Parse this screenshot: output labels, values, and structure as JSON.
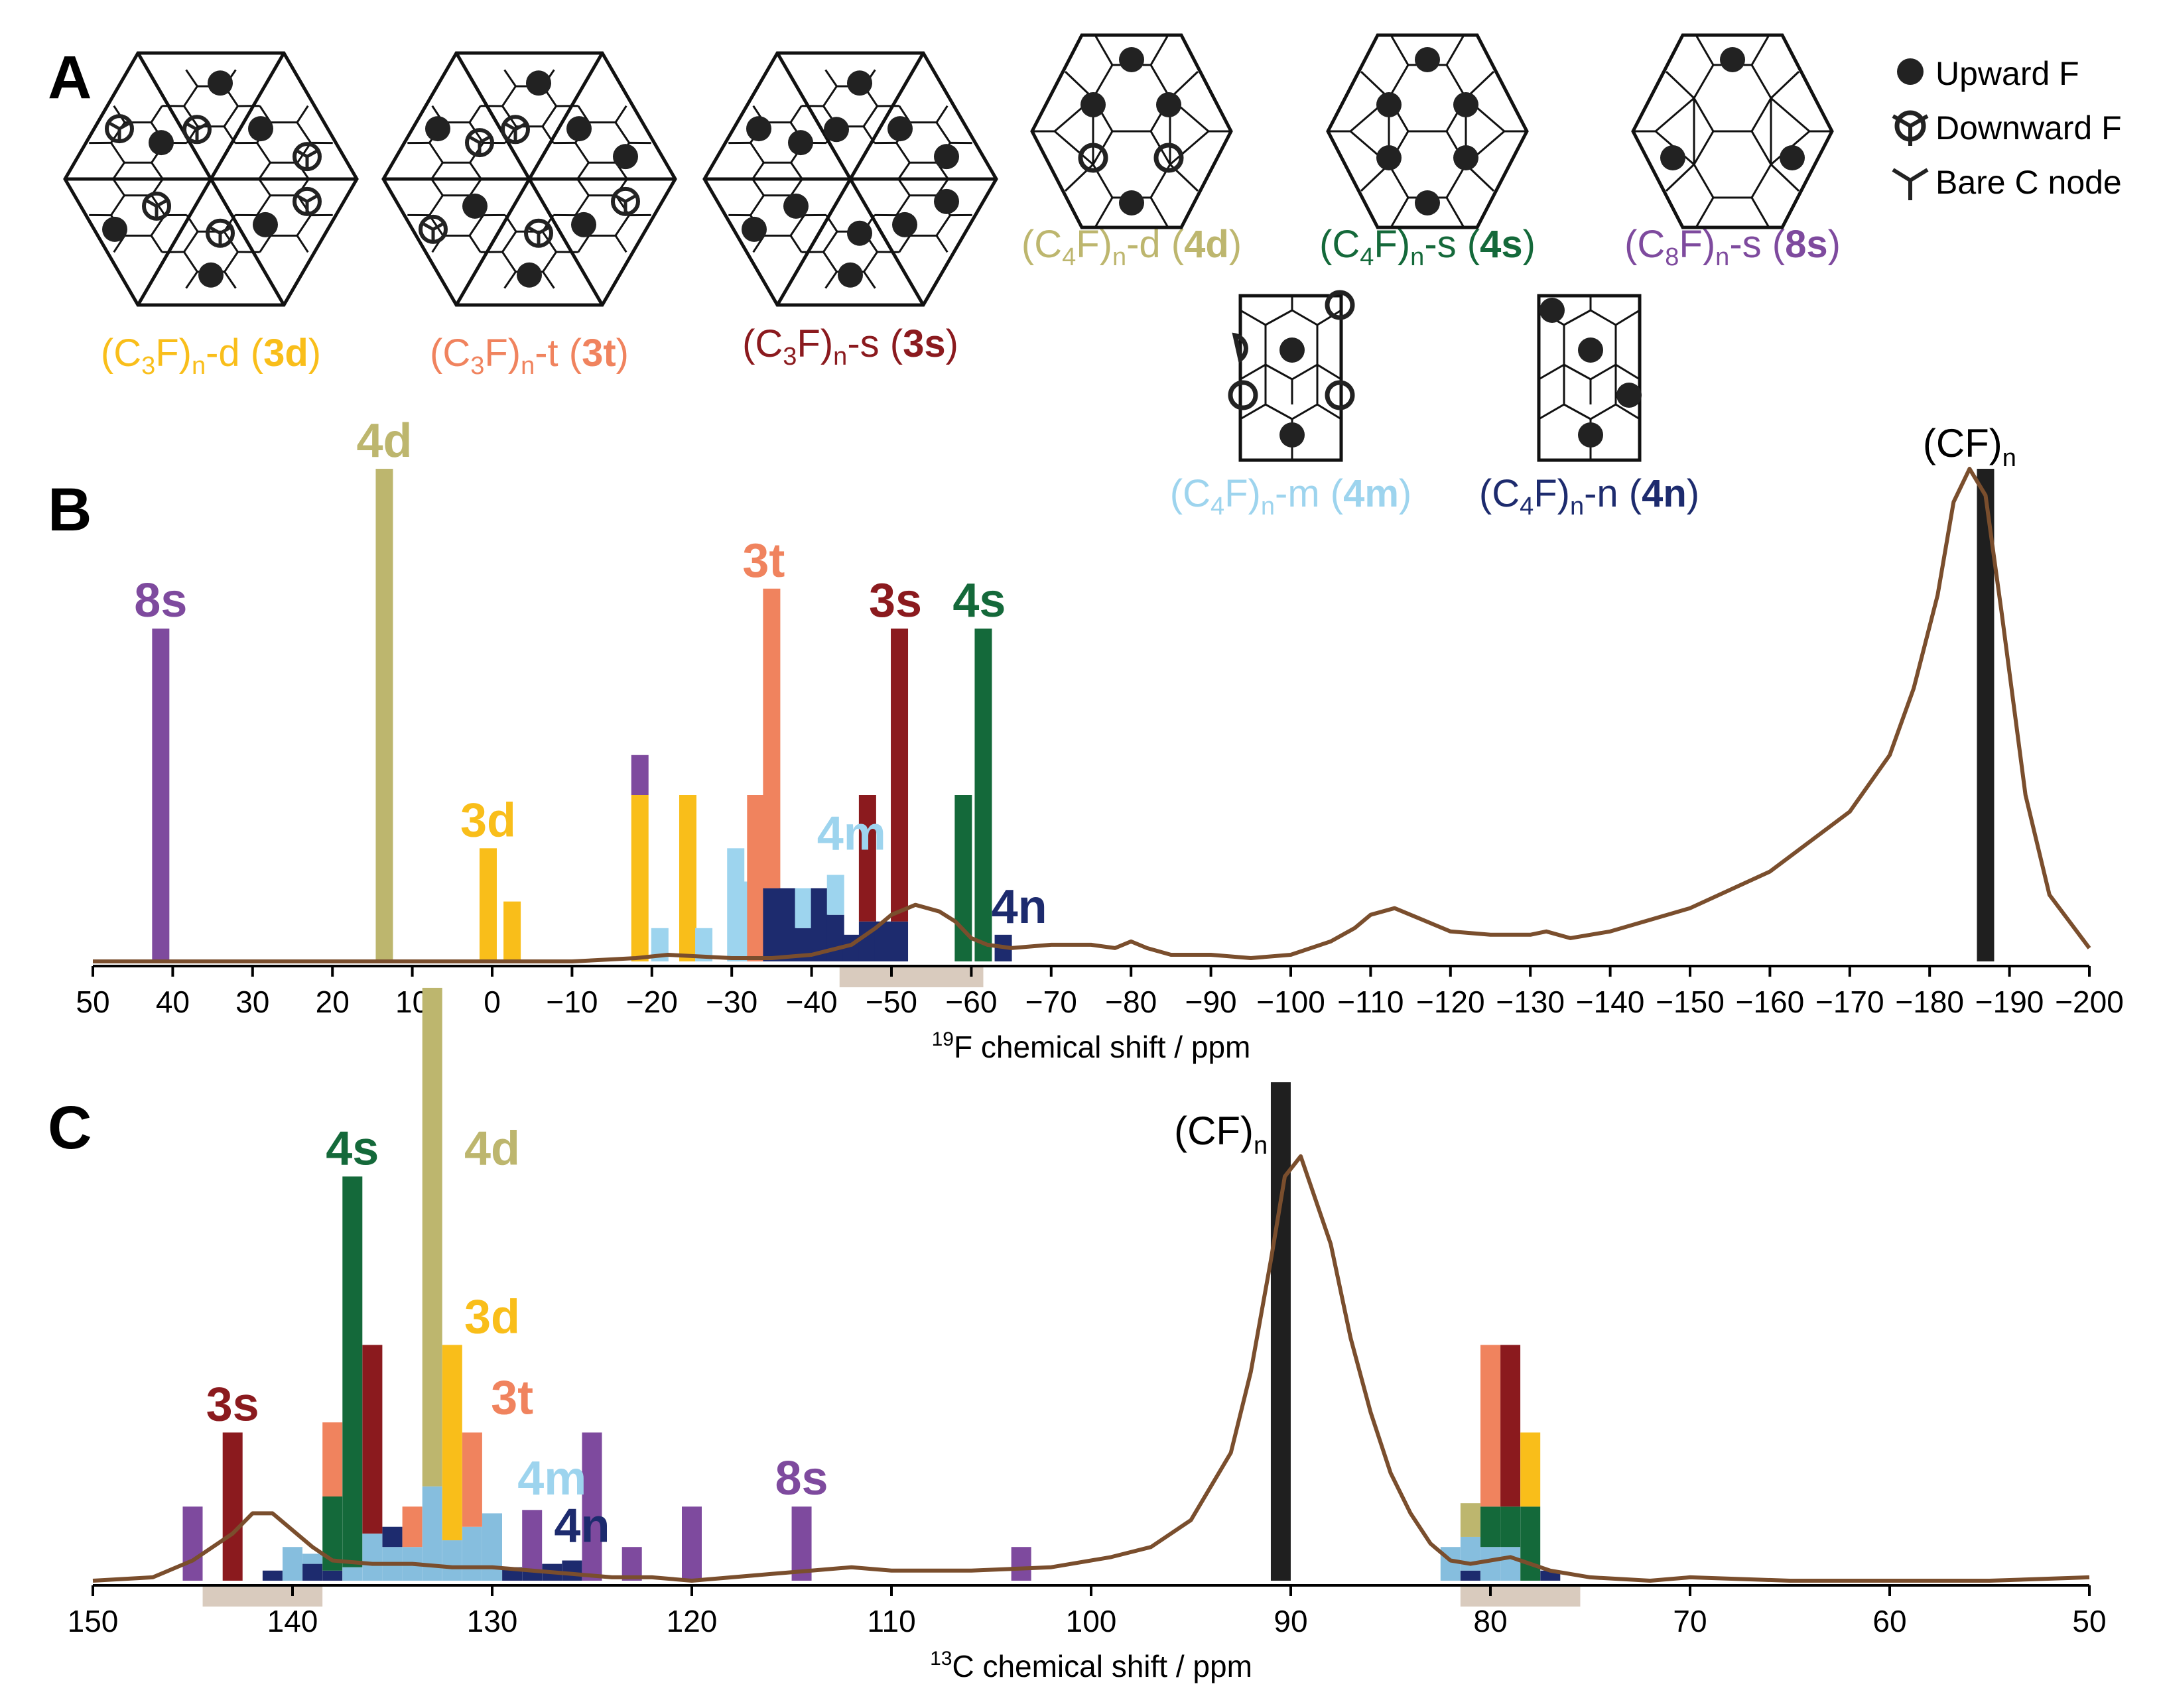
{
  "panels": {
    "A": "A",
    "B": "B",
    "C": "C"
  },
  "legend": [
    {
      "name": "upward-f",
      "label": "Upward F"
    },
    {
      "name": "downward-f",
      "label": "Downward F"
    },
    {
      "name": "bare-c",
      "label": "Bare C node"
    }
  ],
  "structures": [
    {
      "id": "3d",
      "pre": "(C",
      "sub1": "3",
      "mid": "F)",
      "sub2": "n",
      "suffix": "-d (",
      "bold": "3d",
      "close": ")",
      "color": "#F9BE1A"
    },
    {
      "id": "3t",
      "pre": "(C",
      "sub1": "3",
      "mid": "F)",
      "sub2": "n",
      "suffix": "-t (",
      "bold": "3t",
      "close": ")",
      "color": "#F0835E"
    },
    {
      "id": "3s",
      "pre": "(C",
      "sub1": "3",
      "mid": "F)",
      "sub2": "n",
      "suffix": "-s (",
      "bold": "3s",
      "close": ")",
      "color": "#8B1A1E"
    },
    {
      "id": "4d",
      "pre": "(C",
      "sub1": "4",
      "mid": "F)",
      "sub2": "n",
      "suffix": "-d (",
      "bold": "4d",
      "close": ")",
      "color": "#BDB66E"
    },
    {
      "id": "4s",
      "pre": "(C",
      "sub1": "4",
      "mid": "F)",
      "sub2": "n",
      "suffix": "-s (",
      "bold": "4s",
      "close": ")",
      "color": "#14693A"
    },
    {
      "id": "8s",
      "pre": "(C",
      "sub1": "8",
      "mid": "F)",
      "sub2": "n",
      "suffix": "-s (",
      "bold": "8s",
      "close": ")",
      "color": "#7E4A9E"
    },
    {
      "id": "4m",
      "pre": "(C",
      "sub1": "4",
      "mid": "F)",
      "sub2": "n",
      "suffix": "-m (",
      "bold": "4m",
      "close": ")",
      "color": "#9DD4EE"
    },
    {
      "id": "4n",
      "pre": "(C",
      "sub1": "4",
      "mid": "F)",
      "sub2": "n",
      "suffix": "-n (",
      "bold": "4n",
      "close": ")",
      "color": "#1D2B6E"
    }
  ],
  "colors": {
    "3d": "#F9BE1A",
    "3t": "#F0835E",
    "3s": "#8B1A1E",
    "4d": "#BDB66E",
    "4s": "#14693A",
    "8s": "#7E4A9E",
    "4m": "#9DD4EE",
    "4m_stack": "#86BEDE",
    "4n": "#1D2B6E",
    "cf": "#1F1F1F",
    "curve": "#7A4E2D",
    "highlight": "#D9CBBE"
  },
  "chart_data": [
    {
      "id": "B",
      "type": "bar",
      "xlabel_sup": "19",
      "xlabel": "F chemical shift / ppm",
      "xlim": [
        50,
        -200
      ],
      "ticks": [
        50,
        40,
        30,
        20,
        10,
        0,
        -10,
        -20,
        -30,
        -40,
        -50,
        -60,
        -70,
        -80,
        -90,
        -100,
        -110,
        -120,
        -130,
        -140,
        -150,
        -160,
        -170,
        -180,
        -190,
        -200
      ],
      "highlight_ranges": [
        [
          -43.5,
          -61.5
        ]
      ],
      "bar_groups": [
        {
          "s": "8s",
          "x": 41.5,
          "segments": [
            [
              "8s",
              1.0
            ]
          ]
        },
        {
          "s": "4d",
          "x": 13.5,
          "segments": [
            [
              "4d",
              1.48
            ]
          ]
        },
        {
          "s": "3d",
          "x": 0.5,
          "segments": [
            [
              "3d",
              0.34
            ]
          ]
        },
        {
          "s": "3d",
          "x": -2.5,
          "segments": [
            [
              "3d",
              0.18
            ]
          ]
        },
        {
          "s": "3d",
          "x": -18.5,
          "segments": [
            [
              "3d",
              0.5
            ],
            [
              "8s",
              0.12
            ]
          ]
        },
        {
          "s": "4m",
          "x": -21.0,
          "segments": [
            [
              "4m",
              0.1
            ]
          ]
        },
        {
          "s": "3d",
          "x": -24.5,
          "segments": [
            [
              "3d",
              0.5
            ]
          ]
        },
        {
          "s": "4m",
          "x": -26.5,
          "segments": [
            [
              "4m",
              0.1
            ]
          ]
        },
        {
          "s": "4m",
          "x": -30.5,
          "segments": [
            [
              "4m",
              0.34
            ]
          ]
        },
        {
          "s": "4m",
          "x": -32.5,
          "segments": [
            [
              "4m",
              0.24
            ]
          ]
        },
        {
          "s": "3t",
          "x": -33.0,
          "segments": [
            [
              "3t",
              0.5
            ]
          ]
        },
        {
          "s": "3t",
          "x": -35.0,
          "segments": [
            [
              "4n",
              0.22
            ],
            [
              "3t",
              0.9
            ]
          ]
        },
        {
          "s": "4n",
          "x": -37.0,
          "segments": [
            [
              "4n",
              0.22
            ]
          ]
        },
        {
          "s": "4m",
          "x": -39.0,
          "segments": [
            [
              "4n",
              0.1
            ],
            [
              "4m",
              0.12
            ]
          ]
        },
        {
          "s": "4n",
          "x": -41.0,
          "segments": [
            [
              "4n",
              0.22
            ]
          ]
        },
        {
          "s": "4m",
          "x": -43.0,
          "segments": [
            [
              "4n",
              0.14
            ],
            [
              "4m",
              0.12
            ]
          ]
        },
        {
          "s": "4n",
          "x": -45.0,
          "segments": [
            [
              "4n",
              0.08
            ]
          ]
        },
        {
          "s": "3s",
          "x": -47.0,
          "segments": [
            [
              "4n",
              0.12
            ],
            [
              "3s",
              0.38
            ]
          ]
        },
        {
          "s": "4n",
          "x": -49.0,
          "segments": [
            [
              "4n",
              0.12
            ]
          ]
        },
        {
          "s": "3s",
          "x": -51.0,
          "segments": [
            [
              "4n",
              0.12
            ],
            [
              "3s",
              0.88
            ]
          ]
        },
        {
          "s": "4s",
          "x": -59.0,
          "segments": [
            [
              "4s",
              0.5
            ]
          ]
        },
        {
          "s": "4s",
          "x": -61.5,
          "segments": [
            [
              "4s",
              1.0
            ]
          ]
        },
        {
          "s": "4n",
          "x": -64.0,
          "segments": [
            [
              "4n",
              0.08
            ]
          ]
        },
        {
          "s": "cf",
          "x": -187.0,
          "segments": [
            [
              "cf",
              1.48
            ]
          ]
        }
      ],
      "labels": [
        {
          "text": "8s",
          "x": 41.5,
          "level": 1.0,
          "color": "8s"
        },
        {
          "text": "4d",
          "x": 13.5,
          "level": 1.48,
          "color": "4d"
        },
        {
          "text": "3d",
          "x": 0.5,
          "level": 0.34,
          "color": "3d"
        },
        {
          "text": "3t",
          "x": -34.0,
          "level": 1.12,
          "color": "3t"
        },
        {
          "text": "4m",
          "x": -45.0,
          "level": 0.3,
          "color": "4m"
        },
        {
          "text": "3s",
          "x": -50.5,
          "level": 1.0,
          "color": "3s"
        },
        {
          "text": "4s",
          "x": -61.0,
          "level": 1.0,
          "color": "4s"
        },
        {
          "text": "4n",
          "x": -66.0,
          "level": 0.08,
          "color": "4n"
        }
      ],
      "cf_label": {
        "pre": "(CF)",
        "sub": "n",
        "x": -185.0,
        "level": 1.48
      },
      "curve": {
        "x": [
          50,
          40,
          30,
          20,
          10,
          0,
          -10,
          -18,
          -22,
          -30,
          -35,
          -40,
          -45,
          -48,
          -50,
          -53,
          -56,
          -58,
          -60,
          -62,
          -65,
          -70,
          -75,
          -78,
          -80,
          -82,
          -85,
          -90,
          -95,
          -100,
          -105,
          -108,
          -110,
          -113,
          -116,
          -120,
          -125,
          -130,
          -132,
          -135,
          -140,
          -150,
          -160,
          -170,
          -175,
          -178,
          -181,
          -183,
          -185,
          -187,
          -189,
          -192,
          -195,
          -200
        ],
        "y": [
          0.0,
          0.0,
          0.0,
          0.0,
          0.0,
          0.0,
          0.0,
          0.01,
          0.02,
          0.01,
          0.01,
          0.02,
          0.05,
          0.1,
          0.14,
          0.17,
          0.15,
          0.12,
          0.07,
          0.05,
          0.04,
          0.05,
          0.05,
          0.04,
          0.06,
          0.04,
          0.02,
          0.02,
          0.01,
          0.02,
          0.06,
          0.1,
          0.14,
          0.16,
          0.13,
          0.09,
          0.08,
          0.08,
          0.09,
          0.07,
          0.09,
          0.16,
          0.27,
          0.45,
          0.62,
          0.82,
          1.1,
          1.38,
          1.48,
          1.4,
          1.05,
          0.5,
          0.2,
          0.04
        ]
      }
    },
    {
      "id": "C",
      "type": "bar",
      "xlabel_sup": "13",
      "xlabel": "C chemical shift / ppm",
      "xlim": [
        150,
        50
      ],
      "ticks": [
        150,
        140,
        130,
        120,
        110,
        100,
        90,
        80,
        70,
        60,
        50
      ],
      "highlight_ranges": [
        [
          144.5,
          138.5
        ],
        [
          81.5,
          75.5
        ]
      ],
      "bar_groups": [
        {
          "s": "8s",
          "x": 145.0,
          "segments": [
            [
              "8s",
              0.22
            ]
          ]
        },
        {
          "s": "3s",
          "x": 143.0,
          "segments": [
            [
              "3s",
              0.44
            ]
          ]
        },
        {
          "s": "4n",
          "x": 141.0,
          "segments": [
            [
              "4n",
              0.03
            ]
          ]
        },
        {
          "s": "4m",
          "x": 140.0,
          "segments": [
            [
              "4m_stack",
              0.1
            ]
          ]
        },
        {
          "s": "4n",
          "x": 139.0,
          "segments": [
            [
              "4n",
              0.05
            ],
            [
              "4m_stack",
              0.03
            ]
          ]
        },
        {
          "s": "3t",
          "x": 138.0,
          "segments": [
            [
              "4n",
              0.03
            ],
            [
              "4s",
              0.22
            ],
            [
              "3t",
              0.22
            ]
          ]
        },
        {
          "s": "4s",
          "x": 137.0,
          "segments": [
            [
              "4m_stack",
              0.04
            ],
            [
              "4s",
              1.16
            ]
          ]
        },
        {
          "s": "3s",
          "x": 136.0,
          "segments": [
            [
              "4m_stack",
              0.14
            ],
            [
              "3s",
              0.56
            ]
          ]
        },
        {
          "s": "4n",
          "x": 135.0,
          "segments": [
            [
              "4m_stack",
              0.1
            ],
            [
              "4n",
              0.06
            ]
          ]
        },
        {
          "s": "4m",
          "x": 134.0,
          "segments": [
            [
              "4m_stack",
              0.1
            ],
            [
              "3t",
              0.12
            ]
          ]
        },
        {
          "s": "4d",
          "x": 133.0,
          "segments": [
            [
              "4m_stack",
              0.28
            ],
            [
              "4d",
              1.48
            ]
          ]
        },
        {
          "s": "3d",
          "x": 132.0,
          "segments": [
            [
              "4m_stack",
              0.12
            ],
            [
              "3d",
              0.58
            ]
          ]
        },
        {
          "s": "3t",
          "x": 131.0,
          "segments": [
            [
              "4m_stack",
              0.16
            ],
            [
              "3t",
              0.28
            ]
          ]
        },
        {
          "s": "4m",
          "x": 130.0,
          "segments": [
            [
              "4m_stack",
              0.2
            ]
          ]
        },
        {
          "s": "4n",
          "x": 129.0,
          "segments": [
            [
              "4n",
              0.04
            ]
          ]
        },
        {
          "s": "8s",
          "x": 128.0,
          "segments": [
            [
              "4n",
              0.03
            ],
            [
              "8s",
              0.18
            ]
          ]
        },
        {
          "s": "4n",
          "x": 127.0,
          "segments": [
            [
              "4n",
              0.05
            ]
          ]
        },
        {
          "s": "4n",
          "x": 126.0,
          "segments": [
            [
              "4n",
              0.06
            ]
          ]
        },
        {
          "s": "8s",
          "x": 125.0,
          "segments": [
            [
              "8s",
              0.44
            ]
          ]
        },
        {
          "s": "8s",
          "x": 123.0,
          "segments": [
            [
              "8s",
              0.1
            ]
          ]
        },
        {
          "s": "8s",
          "x": 120.0,
          "segments": [
            [
              "8s",
              0.22
            ]
          ]
        },
        {
          "s": "8s",
          "x": 114.5,
          "segments": [
            [
              "8s",
              0.22
            ]
          ]
        },
        {
          "s": "8s",
          "x": 103.5,
          "segments": [
            [
              "8s",
              0.1
            ]
          ]
        },
        {
          "s": "cf",
          "x": 90.5,
          "segments": [
            [
              "cf",
              1.48
            ]
          ]
        },
        {
          "s": "4m",
          "x": 82.0,
          "segments": [
            [
              "4m_stack",
              0.1
            ]
          ]
        },
        {
          "s": "4d",
          "x": 81.0,
          "segments": [
            [
              "4n",
              0.03
            ],
            [
              "4m_stack",
              0.1
            ],
            [
              "4d",
              0.1
            ]
          ]
        },
        {
          "s": "3t",
          "x": 80.0,
          "segments": [
            [
              "4m_stack",
              0.1
            ],
            [
              "4s",
              0.12
            ],
            [
              "3t",
              0.48
            ]
          ]
        },
        {
          "s": "3s",
          "x": 79.0,
          "segments": [
            [
              "4m_stack",
              0.1
            ],
            [
              "4s",
              0.12
            ],
            [
              "3s",
              0.48
            ]
          ]
        },
        {
          "s": "3d",
          "x": 78.0,
          "segments": [
            [
              "4s",
              0.22
            ],
            [
              "3d",
              0.22
            ]
          ]
        },
        {
          "s": "4n",
          "x": 77.0,
          "segments": [
            [
              "4n",
              0.03
            ]
          ]
        }
      ],
      "labels": [
        {
          "text": "3s",
          "x": 143.0,
          "level": 0.44,
          "color": "3s"
        },
        {
          "text": "4s",
          "x": 137.0,
          "level": 1.2,
          "color": "4s"
        },
        {
          "text": "4d",
          "x": 130.0,
          "level": 1.2,
          "color": "4d"
        },
        {
          "text": "3d",
          "x": 130.0,
          "level": 0.7,
          "color": "3d"
        },
        {
          "text": "3t",
          "x": 129.0,
          "level": 0.46,
          "color": "3t"
        },
        {
          "text": "4m",
          "x": 127.0,
          "level": 0.22,
          "color": "4m"
        },
        {
          "text": "4n",
          "x": 125.5,
          "level": 0.08,
          "color": "4n"
        },
        {
          "text": "8s",
          "x": 114.5,
          "level": 0.22,
          "color": "8s"
        }
      ],
      "cf_label": {
        "pre": "(CF)",
        "sub": "n",
        "x": 93.5,
        "level": 1.26
      },
      "curve": {
        "x": [
          150,
          147,
          145,
          143,
          142,
          141,
          140,
          139,
          138,
          136,
          134,
          132,
          130,
          128,
          126,
          124,
          122,
          120,
          118,
          116,
          114,
          112,
          110,
          106,
          102,
          99,
          97,
          95,
          93,
          92,
          91,
          90.3,
          89.5,
          88,
          87,
          86,
          85,
          84,
          83,
          82,
          81,
          80,
          79,
          78,
          77,
          75,
          72,
          70,
          65,
          60,
          55,
          50
        ],
        "y": [
          0.0,
          0.01,
          0.06,
          0.14,
          0.2,
          0.2,
          0.15,
          0.1,
          0.06,
          0.05,
          0.05,
          0.04,
          0.04,
          0.03,
          0.02,
          0.01,
          0.01,
          0.0,
          0.01,
          0.02,
          0.03,
          0.04,
          0.03,
          0.03,
          0.04,
          0.07,
          0.1,
          0.18,
          0.38,
          0.62,
          0.95,
          1.2,
          1.26,
          1.0,
          0.72,
          0.5,
          0.32,
          0.2,
          0.11,
          0.06,
          0.05,
          0.06,
          0.07,
          0.05,
          0.03,
          0.01,
          0.0,
          0.01,
          0.0,
          0.0,
          0.0,
          0.01
        ]
      }
    }
  ]
}
